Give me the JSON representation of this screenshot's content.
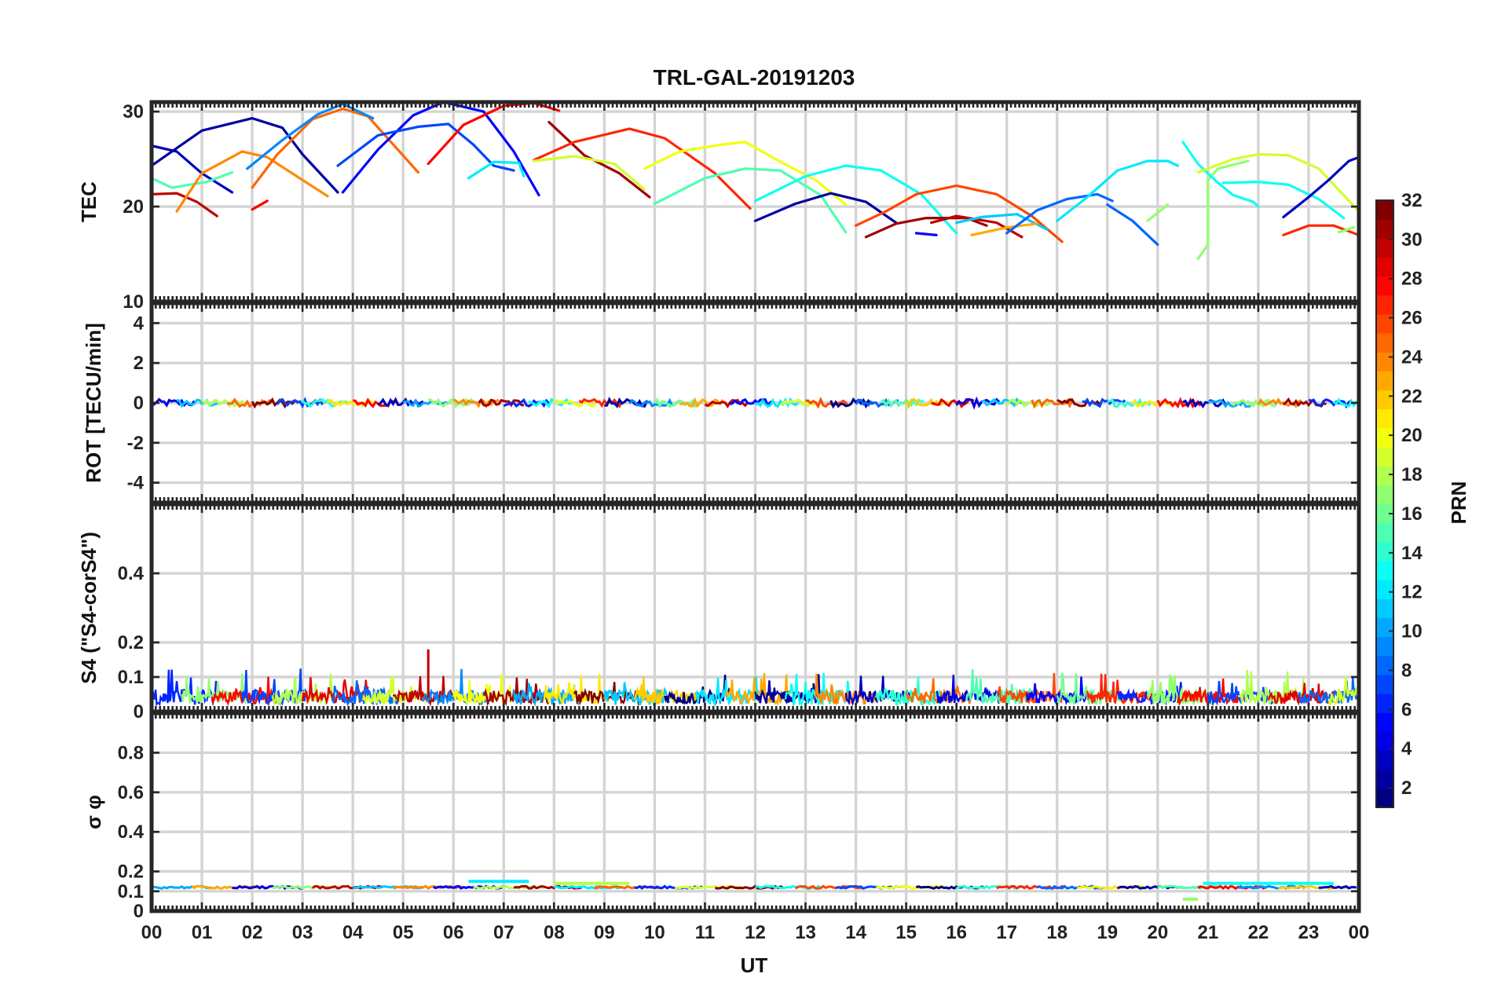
{
  "chart_data": {
    "type": "line",
    "title": "TRL-GAL-20191203",
    "xlabel": "UT",
    "x_range_hours": [
      0,
      24
    ],
    "x_ticks": [
      "00",
      "01",
      "02",
      "03",
      "04",
      "05",
      "06",
      "07",
      "08",
      "09",
      "10",
      "11",
      "12",
      "13",
      "14",
      "15",
      "16",
      "17",
      "18",
      "19",
      "20",
      "21",
      "22",
      "23",
      "00"
    ],
    "grid": true,
    "colorbar": {
      "label": "PRN",
      "colormap": "jet",
      "range": [
        1,
        32
      ],
      "ticks": [
        "2",
        "4",
        "6",
        "8",
        "10",
        "12",
        "14",
        "16",
        "18",
        "20",
        "22",
        "24",
        "26",
        "28",
        "30",
        "32"
      ],
      "placement": "right"
    },
    "panels": [
      {
        "name": "tec",
        "ylabel": "TEC",
        "ylim": [
          10,
          31
        ],
        "yticks": [
          "10",
          "20",
          "30"
        ],
        "series": [
          {
            "prn": 3,
            "x": [
              0.0,
              0.5,
              1.0,
              1.6
            ],
            "y": [
              26.4,
              25.8,
              23.5,
              21.5
            ]
          },
          {
            "prn": 15,
            "x": [
              0.0,
              0.4,
              1.1,
              1.6
            ],
            "y": [
              23.0,
              22.0,
              22.6,
              23.6
            ]
          },
          {
            "prn": 30,
            "x": [
              0.0,
              0.5,
              0.9,
              1.3
            ],
            "y": [
              21.3,
              21.4,
              20.5,
              19.0
            ]
          },
          {
            "prn": 24,
            "x": [
              0.5,
              1.0,
              1.8,
              2.3,
              3.0,
              3.5
            ],
            "y": [
              19.5,
              23.5,
              25.8,
              25.2,
              22.8,
              21.1
            ]
          },
          {
            "prn": 2,
            "x": [
              0.0,
              1.0,
              2.0,
              2.6,
              3.0,
              3.7
            ],
            "y": [
              24.3,
              28.0,
              29.3,
              28.3,
              25.5,
              21.5
            ]
          },
          {
            "prn": 25,
            "x": [
              2.0,
              2.5,
              3.2,
              3.8,
              4.3,
              5.3
            ],
            "y": [
              22.0,
              25.5,
              29.2,
              30.3,
              29.5,
              23.6
            ]
          },
          {
            "prn": 9,
            "x": [
              1.9,
              2.6,
              3.3,
              3.8,
              4.4
            ],
            "y": [
              24.0,
              27.0,
              29.7,
              30.8,
              29.3
            ]
          },
          {
            "prn": 28,
            "x": [
              2.0,
              2.3
            ],
            "y": [
              19.7,
              20.6
            ]
          },
          {
            "prn": 5,
            "x": [
              3.8,
              4.5,
              5.2,
              5.8,
              6.6,
              7.2,
              7.7
            ],
            "y": [
              21.5,
              26.0,
              29.6,
              31.0,
              30.0,
              25.8,
              21.2
            ]
          },
          {
            "prn": 7,
            "x": [
              3.7,
              4.5,
              5.3,
              5.9,
              6.4,
              6.8,
              7.2
            ],
            "y": [
              24.3,
              27.5,
              28.4,
              28.7,
              26.5,
              24.3,
              23.8
            ]
          },
          {
            "prn": 12,
            "x": [
              6.3,
              6.8,
              7.3,
              7.4
            ],
            "y": [
              23.0,
              24.7,
              24.6,
              23.2
            ]
          },
          {
            "prn": 28,
            "x": [
              5.5,
              6.2,
              7.0,
              7.6,
              8.1
            ],
            "y": [
              24.5,
              28.6,
              30.6,
              30.9,
              30.1
            ]
          },
          {
            "prn": 31,
            "x": [
              7.9,
              8.6,
              9.3,
              9.9
            ],
            "y": [
              28.9,
              25.4,
              23.5,
              21.0
            ]
          },
          {
            "prn": 27,
            "x": [
              7.6,
              8.4,
              9.5,
              10.2,
              11.2,
              11.9
            ],
            "y": [
              24.9,
              26.8,
              28.2,
              27.2,
              23.5,
              19.8
            ]
          },
          {
            "prn": 19,
            "x": [
              7.6,
              8.4,
              9.2,
              9.8
            ],
            "y": [
              24.8,
              25.3,
              24.5,
              21.8
            ]
          },
          {
            "prn": 20,
            "x": [
              9.8,
              10.5,
              11.3,
              11.8,
              12.4,
              13.2,
              13.8
            ],
            "y": [
              24.0,
              25.8,
              26.5,
              26.8,
              25.0,
              22.8,
              20.2
            ]
          },
          {
            "prn": 15,
            "x": [
              10.0,
              11.0,
              11.8,
              12.5,
              13.3,
              13.8
            ],
            "y": [
              20.3,
              23.0,
              24.0,
              23.8,
              21.2,
              17.3
            ]
          },
          {
            "prn": 13,
            "x": [
              12.0,
              13.0,
              13.8,
              14.5,
              15.3,
              16.0
            ],
            "y": [
              20.6,
              23.2,
              24.3,
              23.8,
              21.3,
              17.2
            ]
          },
          {
            "prn": 2,
            "x": [
              12.0,
              12.8,
              13.5,
              14.2,
              14.8
            ],
            "y": [
              18.5,
              20.3,
              21.4,
              20.5,
              18.3
            ]
          },
          {
            "prn": 26,
            "x": [
              14.0,
              14.6,
              15.2,
              16.0,
              16.8,
              17.5,
              18.1
            ],
            "y": [
              18.0,
              19.5,
              21.3,
              22.2,
              21.3,
              19.0,
              16.3
            ]
          },
          {
            "prn": 31,
            "x": [
              14.2,
              14.8,
              15.4,
              16.2,
              16.6
            ],
            "y": [
              16.8,
              18.2,
              18.8,
              18.8,
              18.0
            ]
          },
          {
            "prn": 30,
            "x": [
              15.5,
              16.0,
              16.8,
              17.3
            ],
            "y": [
              18.3,
              19.0,
              18.3,
              16.8
            ]
          },
          {
            "prn": 5,
            "x": [
              15.2,
              15.6
            ],
            "y": [
              17.2,
              17.0
            ]
          },
          {
            "prn": 11,
            "x": [
              16.0,
              16.5,
              17.2,
              17.8
            ],
            "y": [
              18.3,
              18.9,
              19.2,
              17.6
            ]
          },
          {
            "prn": 23,
            "x": [
              16.3,
              17.0,
              17.6
            ],
            "y": [
              17.0,
              17.8,
              18.2
            ]
          },
          {
            "prn": 8,
            "x": [
              17.0,
              17.6,
              18.2,
              18.8,
              19.1
            ],
            "y": [
              17.2,
              19.6,
              20.8,
              21.3,
              20.6
            ]
          },
          {
            "prn": 12,
            "x": [
              18.0,
              18.6,
              19.2,
              19.8,
              20.2,
              20.4
            ],
            "y": [
              18.5,
              21.0,
              23.8,
              24.8,
              24.8,
              24.3
            ]
          },
          {
            "prn": 8,
            "x": [
              19.0,
              19.5,
              20.0
            ],
            "y": [
              20.2,
              18.5,
              16.0
            ]
          },
          {
            "prn": 17,
            "x": [
              19.8,
              20.2
            ],
            "y": [
              18.5,
              20.2
            ]
          },
          {
            "prn": 17,
            "x": [
              20.8,
              21.0,
              21.0,
              21.2,
              21.8
            ],
            "y": [
              14.5,
              16.0,
              22.8,
              24.0,
              24.8
            ]
          },
          {
            "prn": 13,
            "x": [
              20.5,
              20.8,
              21.2,
              21.5,
              21.9,
              22.0
            ],
            "y": [
              26.8,
              24.5,
              22.5,
              21.2,
              20.5,
              20.0
            ]
          },
          {
            "prn": 19,
            "x": [
              20.8,
              21.5,
              22.0,
              22.6,
              23.2,
              24.0
            ],
            "y": [
              23.6,
              25.0,
              25.5,
              25.4,
              24.0,
              19.5
            ]
          },
          {
            "prn": 13,
            "x": [
              21.3,
              22.0,
              22.6,
              23.2,
              23.7
            ],
            "y": [
              22.5,
              22.6,
              22.3,
              20.8,
              18.8
            ]
          },
          {
            "prn": 3,
            "x": [
              22.5,
              23.0,
              23.4,
              23.8,
              24.0
            ],
            "y": [
              18.9,
              21.0,
              22.8,
              24.8,
              25.2
            ]
          },
          {
            "prn": 27,
            "x": [
              22.5,
              23.0,
              23.5,
              24.0
            ],
            "y": [
              17.0,
              18.0,
              18.0,
              17.0
            ]
          },
          {
            "prn": 17,
            "x": [
              23.6,
              23.9
            ],
            "y": [
              17.3,
              17.8
            ]
          }
        ]
      },
      {
        "name": "rot",
        "ylabel": "ROT [TECU/min]",
        "ylim": [
          -5,
          5
        ],
        "yticks": [
          "-4",
          "-2",
          "0",
          "2",
          "4"
        ],
        "value_range": [
          -0.3,
          0.3
        ],
        "mean": 0.0
      },
      {
        "name": "s4",
        "ylabel": "S4 (\"S4-corS4\")",
        "ylim": [
          0,
          0.6
        ],
        "yticks": [
          "0",
          "0.1",
          "0.2",
          "0.4"
        ],
        "baseline": 0.04,
        "value_range": [
          0.0,
          0.18
        ],
        "peak": {
          "x": 5.5,
          "y": 0.18
        }
      },
      {
        "name": "sigma_phi",
        "ylabel": "σ φ",
        "ylim": [
          0,
          1
        ],
        "yticks": [
          "0",
          "0.1",
          "0.2",
          "0.4",
          "0.6",
          "0.8"
        ],
        "baseline": 0.12,
        "segments": [
          {
            "prn": 12,
            "x": [
              6.3,
              7.5
            ],
            "y": 0.15
          },
          {
            "prn": 18,
            "x": [
              8.0,
              9.5
            ],
            "y": 0.14
          },
          {
            "prn": 17,
            "x": [
              20.5,
              20.8
            ],
            "y": 0.06
          },
          {
            "prn": 13,
            "x": [
              20.9,
              23.5
            ],
            "y": 0.14
          }
        ]
      }
    ]
  }
}
